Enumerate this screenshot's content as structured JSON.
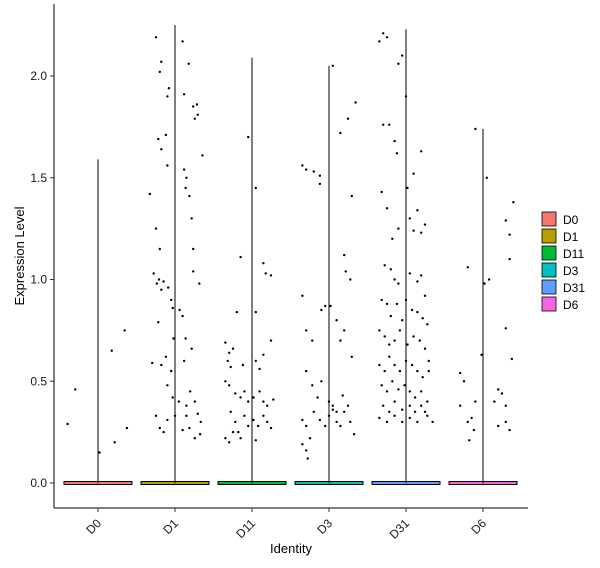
{
  "chart_data": {
    "type": "violin",
    "title": "",
    "xlabel": "Identity",
    "ylabel": "Expression Level",
    "ylim": [
      0,
      2.25
    ],
    "yticks": [
      0.0,
      0.5,
      1.0,
      1.5,
      2.0
    ],
    "ytick_labels": [
      "0.0",
      "0.5",
      "1.0",
      "1.5",
      "2.0"
    ],
    "categories": [
      "D0",
      "D1",
      "D11",
      "D3",
      "D31",
      "D6"
    ],
    "grid": false,
    "legend_position": "right",
    "series": [
      {
        "name": "D0",
        "color": "#F8766D",
        "max": 1.59,
        "points": [
          [
            -0.4,
            0.29
          ],
          [
            -0.3,
            0.46
          ],
          [
            0.02,
            0.15
          ],
          [
            0.18,
            0.65
          ],
          [
            0.22,
            0.2
          ],
          [
            0.35,
            0.75
          ],
          [
            0.38,
            0.27
          ]
        ]
      },
      {
        "name": "D1",
        "color": "#B79F00",
        "max": 2.25,
        "points": [
          [
            -0.25,
            2.19
          ],
          [
            -0.18,
            2.07
          ],
          [
            -0.2,
            2.02
          ],
          [
            -0.08,
            1.94
          ],
          [
            -0.1,
            1.9
          ],
          [
            0.1,
            2.17
          ],
          [
            0.18,
            2.06
          ],
          [
            0.12,
            1.91
          ],
          [
            0.24,
            1.85
          ],
          [
            0.29,
            1.86
          ],
          [
            0.3,
            1.81
          ],
          [
            0.26,
            1.79
          ],
          [
            0.36,
            1.61
          ],
          [
            -0.33,
            1.42
          ],
          [
            -0.22,
            1.69
          ],
          [
            -0.18,
            1.64
          ],
          [
            -0.12,
            1.71
          ],
          [
            -0.1,
            1.56
          ],
          [
            -0.25,
            1.25
          ],
          [
            -0.2,
            1.15
          ],
          [
            0.12,
            1.54
          ],
          [
            0.15,
            1.5
          ],
          [
            0.14,
            1.45
          ],
          [
            0.19,
            1.41
          ],
          [
            0.22,
            1.3
          ],
          [
            0.24,
            1.15
          ],
          [
            0.24,
            1.04
          ],
          [
            0.32,
            0.98
          ],
          [
            -0.28,
            1.03
          ],
          [
            -0.24,
            0.98
          ],
          [
            -0.21,
            1.0
          ],
          [
            -0.18,
            0.95
          ],
          [
            -0.15,
            0.99
          ],
          [
            -0.09,
            0.96
          ],
          [
            -0.05,
            0.9
          ],
          [
            -0.03,
            0.86
          ],
          [
            -0.02,
            0.71
          ],
          [
            0.06,
            0.85
          ],
          [
            0.1,
            0.82
          ],
          [
            0.14,
            0.71
          ],
          [
            0.22,
            0.66
          ],
          [
            0.12,
            0.6
          ],
          [
            -0.3,
            0.59
          ],
          [
            -0.22,
            0.79
          ],
          [
            -0.18,
            0.58
          ],
          [
            -0.12,
            0.62
          ],
          [
            -0.05,
            0.55
          ],
          [
            -0.1,
            0.48
          ],
          [
            -0.03,
            0.42
          ],
          [
            0.05,
            0.4
          ],
          [
            0.15,
            0.38
          ],
          [
            0.2,
            0.45
          ],
          [
            0.26,
            0.4
          ],
          [
            0.3,
            0.34
          ],
          [
            0.34,
            0.3
          ],
          [
            0.33,
            0.24
          ],
          [
            -0.25,
            0.33
          ],
          [
            -0.2,
            0.27
          ],
          [
            -0.15,
            0.25
          ],
          [
            -0.1,
            0.31
          ],
          [
            0.0,
            0.33
          ],
          [
            0.1,
            0.26
          ],
          [
            0.15,
            0.33
          ],
          [
            0.19,
            0.27
          ],
          [
            0.26,
            0.22
          ]
        ]
      },
      {
        "name": "D11",
        "color": "#00BA38",
        "max": 2.09,
        "points": [
          [
            -0.05,
            1.7
          ],
          [
            0.05,
            1.45
          ],
          [
            -0.15,
            1.11
          ],
          [
            0.15,
            1.08
          ],
          [
            0.18,
            1.03
          ],
          [
            0.25,
            1.02
          ],
          [
            -0.2,
            0.84
          ],
          [
            0.05,
            0.84
          ],
          [
            -0.35,
            0.69
          ],
          [
            -0.3,
            0.64
          ],
          [
            -0.25,
            0.66
          ],
          [
            -0.32,
            0.6
          ],
          [
            -0.28,
            0.57
          ],
          [
            -0.12,
            0.58
          ],
          [
            0.05,
            0.6
          ],
          [
            0.1,
            0.56
          ],
          [
            0.15,
            0.63
          ],
          [
            0.25,
            0.7
          ],
          [
            -0.35,
            0.5
          ],
          [
            -0.3,
            0.48
          ],
          [
            -0.22,
            0.44
          ],
          [
            -0.15,
            0.42
          ],
          [
            -0.1,
            0.45
          ],
          [
            -0.05,
            0.4
          ],
          [
            0.02,
            0.42
          ],
          [
            0.1,
            0.45
          ],
          [
            0.15,
            0.4
          ],
          [
            0.2,
            0.38
          ],
          [
            0.28,
            0.41
          ],
          [
            -0.28,
            0.35
          ],
          [
            -0.22,
            0.3
          ],
          [
            -0.18,
            0.25
          ],
          [
            -0.1,
            0.33
          ],
          [
            -0.05,
            0.28
          ],
          [
            0.02,
            0.31
          ],
          [
            0.08,
            0.28
          ],
          [
            0.15,
            0.33
          ],
          [
            0.2,
            0.3
          ],
          [
            0.25,
            0.27
          ],
          [
            -0.35,
            0.22
          ],
          [
            -0.3,
            0.2
          ],
          [
            -0.25,
            0.25
          ],
          [
            -0.15,
            0.22
          ],
          [
            0.05,
            0.21
          ]
        ]
      },
      {
        "name": "D3",
        "color": "#00BFC4",
        "max": 2.05,
        "points": [
          [
            0.05,
            2.05
          ],
          [
            0.15,
            1.72
          ],
          [
            0.35,
            1.87
          ],
          [
            0.25,
            1.79
          ],
          [
            0.3,
            1.41
          ],
          [
            -0.35,
            1.56
          ],
          [
            -0.3,
            1.54
          ],
          [
            -0.2,
            1.53
          ],
          [
            -0.12,
            1.47
          ],
          [
            -0.12,
            1.51
          ],
          [
            0.2,
            1.12
          ],
          [
            0.22,
            1.04
          ],
          [
            0.28,
            1.0
          ],
          [
            -0.35,
            0.92
          ],
          [
            -0.3,
            0.75
          ],
          [
            -0.22,
            0.7
          ],
          [
            -0.1,
            0.85
          ],
          [
            -0.05,
            0.87
          ],
          [
            0.02,
            0.87
          ],
          [
            0.1,
            0.8
          ],
          [
            0.15,
            0.7
          ],
          [
            0.2,
            0.75
          ],
          [
            0.3,
            0.62
          ],
          [
            -0.3,
            0.55
          ],
          [
            -0.22,
            0.48
          ],
          [
            -0.15,
            0.42
          ],
          [
            -0.1,
            0.5
          ],
          [
            0.0,
            0.4
          ],
          [
            0.05,
            0.38
          ],
          [
            0.1,
            0.35
          ],
          [
            0.18,
            0.43
          ],
          [
            0.25,
            0.38
          ],
          [
            -0.35,
            0.31
          ],
          [
            -0.3,
            0.28
          ],
          [
            -0.25,
            0.22
          ],
          [
            -0.2,
            0.35
          ],
          [
            -0.12,
            0.31
          ],
          [
            -0.05,
            0.28
          ],
          [
            0.0,
            0.33
          ],
          [
            0.05,
            0.36
          ],
          [
            0.1,
            0.3
          ],
          [
            0.15,
            0.28
          ],
          [
            0.2,
            0.35
          ],
          [
            0.28,
            0.3
          ],
          [
            0.33,
            0.24
          ],
          [
            -0.35,
            0.19
          ],
          [
            -0.3,
            0.16
          ],
          [
            -0.28,
            0.12
          ]
        ]
      },
      {
        "name": "D31",
        "color": "#619CFF",
        "max": 2.23,
        "points": [
          [
            -0.35,
            2.17
          ],
          [
            -0.3,
            2.21
          ],
          [
            -0.25,
            2.19
          ],
          [
            -0.05,
            2.1
          ],
          [
            0.0,
            1.9
          ],
          [
            -0.1,
            2.06
          ],
          [
            0.2,
            1.63
          ],
          [
            -0.3,
            1.76
          ],
          [
            -0.22,
            1.76
          ],
          [
            -0.15,
            1.68
          ],
          [
            -0.12,
            1.62
          ],
          [
            0.02,
            1.45
          ],
          [
            0.1,
            1.52
          ],
          [
            -0.32,
            1.43
          ],
          [
            -0.25,
            1.35
          ],
          [
            -0.18,
            1.2
          ],
          [
            -0.1,
            1.25
          ],
          [
            0.05,
            1.3
          ],
          [
            0.15,
            1.34
          ],
          [
            0.2,
            1.23
          ],
          [
            0.25,
            1.27
          ],
          [
            0.1,
            1.24
          ],
          [
            -0.2,
            1.05
          ],
          [
            -0.28,
            1.07
          ],
          [
            -0.15,
            1.0
          ],
          [
            -0.1,
            0.98
          ],
          [
            0.05,
            1.03
          ],
          [
            0.15,
            0.99
          ],
          [
            0.2,
            1.02
          ],
          [
            0.25,
            0.92
          ],
          [
            -0.32,
            0.9
          ],
          [
            -0.25,
            0.88
          ],
          [
            -0.2,
            0.82
          ],
          [
            -0.12,
            0.88
          ],
          [
            -0.05,
            0.8
          ],
          [
            0.0,
            0.9
          ],
          [
            0.08,
            0.85
          ],
          [
            0.15,
            0.84
          ],
          [
            0.22,
            0.81
          ],
          [
            0.28,
            0.78
          ],
          [
            -0.35,
            0.75
          ],
          [
            -0.28,
            0.72
          ],
          [
            -0.22,
            0.68
          ],
          [
            -0.15,
            0.7
          ],
          [
            -0.08,
            0.75
          ],
          [
            0.02,
            0.68
          ],
          [
            0.1,
            0.72
          ],
          [
            0.18,
            0.7
          ],
          [
            0.25,
            0.66
          ],
          [
            0.3,
            0.6
          ],
          [
            -0.35,
            0.58
          ],
          [
            -0.28,
            0.55
          ],
          [
            -0.22,
            0.62
          ],
          [
            -0.15,
            0.58
          ],
          [
            -0.08,
            0.55
          ],
          [
            0.0,
            0.6
          ],
          [
            0.08,
            0.58
          ],
          [
            0.15,
            0.55
          ],
          [
            0.22,
            0.52
          ],
          [
            0.3,
            0.55
          ],
          [
            -0.32,
            0.48
          ],
          [
            -0.25,
            0.45
          ],
          [
            -0.18,
            0.5
          ],
          [
            -0.1,
            0.46
          ],
          [
            -0.02,
            0.48
          ],
          [
            0.05,
            0.45
          ],
          [
            0.12,
            0.42
          ],
          [
            0.2,
            0.45
          ],
          [
            0.28,
            0.4
          ],
          [
            -0.3,
            0.38
          ],
          [
            -0.22,
            0.35
          ],
          [
            -0.15,
            0.4
          ],
          [
            -0.05,
            0.36
          ],
          [
            0.05,
            0.38
          ],
          [
            0.12,
            0.35
          ],
          [
            0.2,
            0.38
          ],
          [
            0.28,
            0.33
          ],
          [
            -0.35,
            0.32
          ],
          [
            -0.25,
            0.3
          ],
          [
            -0.15,
            0.33
          ],
          [
            -0.05,
            0.3
          ],
          [
            0.05,
            0.32
          ],
          [
            0.15,
            0.3
          ],
          [
            0.25,
            0.35
          ],
          [
            0.35,
            0.3
          ]
        ]
      },
      {
        "name": "D6",
        "color": "#F564E3",
        "max": 1.74,
        "points": [
          [
            -0.1,
            1.74
          ],
          [
            0.05,
            1.5
          ],
          [
            0.3,
            1.29
          ],
          [
            0.4,
            1.38
          ],
          [
            0.35,
            1.22
          ],
          [
            0.35,
            1.1
          ],
          [
            -0.2,
            1.06
          ],
          [
            0.02,
            0.98
          ],
          [
            0.08,
            1.0
          ],
          [
            0.3,
            0.76
          ],
          [
            -0.02,
            0.63
          ],
          [
            0.38,
            0.61
          ],
          [
            -0.3,
            0.54
          ],
          [
            -0.25,
            0.5
          ],
          [
            0.2,
            0.46
          ],
          [
            0.25,
            0.44
          ],
          [
            0.15,
            0.4
          ],
          [
            -0.1,
            0.4
          ],
          [
            0.3,
            0.38
          ],
          [
            -0.3,
            0.38
          ],
          [
            -0.2,
            0.3
          ],
          [
            -0.15,
            0.32
          ],
          [
            0.2,
            0.28
          ],
          [
            0.3,
            0.3
          ],
          [
            0.35,
            0.26
          ],
          [
            -0.18,
            0.21
          ],
          [
            -0.12,
            0.26
          ]
        ]
      }
    ]
  }
}
